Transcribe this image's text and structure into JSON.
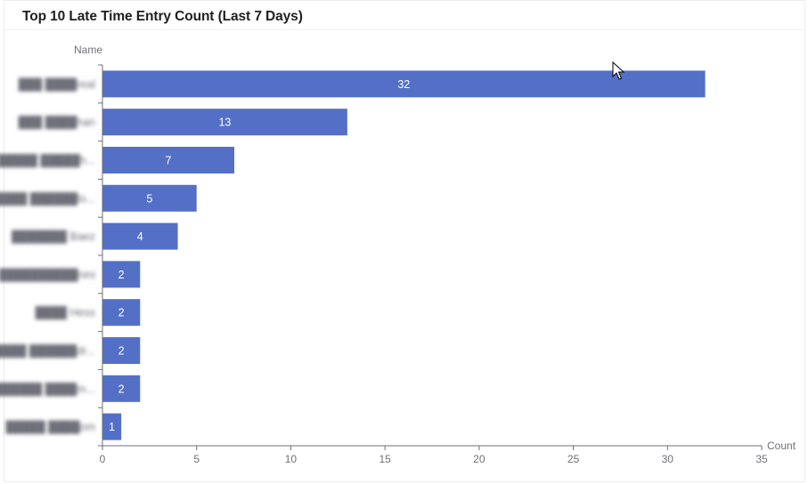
{
  "panel": {
    "title": "Top 10 Late Time Entry Count (Last 7 Days)"
  },
  "chart_data": {
    "type": "bar",
    "orientation": "horizontal",
    "title": "Top 10 Late Time Entry Count (Last 7 Days)",
    "ylabel": "Name",
    "xlabel": "Count",
    "categories": [
      "███ ████real",
      "███ ████han",
      "█████ █████h...",
      "█████ ██████lo...",
      "███████ Baez",
      "██████████nini",
      "████ Hess",
      "█████ ██████dr...",
      "██████ ████m...",
      "█████ ████om"
    ],
    "values": [
      32,
      13,
      7,
      5,
      4,
      2,
      2,
      2,
      2,
      1
    ],
    "xlim": [
      0,
      35
    ],
    "xticks": [
      0,
      5,
      10,
      15,
      20,
      25,
      30,
      35
    ],
    "grid": false,
    "legend": "none",
    "bar_color": "#5470c6",
    "label_color": "#ffffff",
    "names_blurred": true
  }
}
